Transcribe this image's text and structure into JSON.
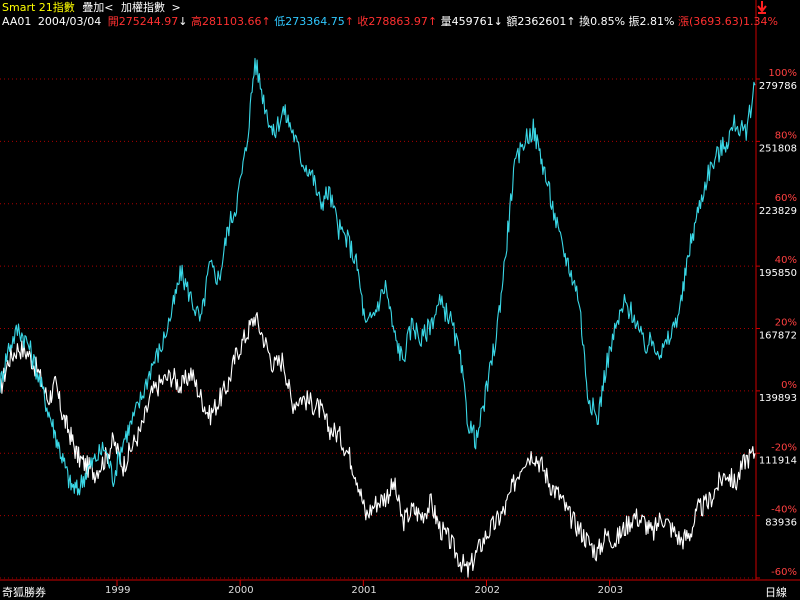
{
  "header": {
    "title": "Smart 21指數",
    "overlay_label": "疊加<",
    "overlay_name": "加權指數",
    "overlay_close": ">",
    "code": "AA01",
    "date": "2004/03/04",
    "open": "開275244.97",
    "high": "高281103.66",
    "low": "低273364.75",
    "close": "收278863.97",
    "volume": "量459761",
    "amount": "額2362601",
    "turnover": "換0.85%",
    "amplitude": "振2.81%",
    "change": "漲(3693.63)1.34%",
    "colors": {
      "title": "#ffff00",
      "label": "#ffffff",
      "up": "#ff3030",
      "down": "#ffffff",
      "low": "#30c8ff",
      "change": "#ff3030"
    }
  },
  "footer": {
    "broker": "奇狐勝券",
    "period": "日線"
  },
  "colors": {
    "background": "#000000",
    "primary_line": "#ffffff",
    "overlay_line": "#3ad7e6",
    "grid": "#aa0000",
    "axis": "#cc0000",
    "pct_label": "#ff4040",
    "value_label": "#ffffff"
  },
  "chart_data": {
    "type": "line",
    "x_axis": {
      "labels": [
        "1999",
        "2000",
        "2001",
        "2002",
        "2003"
      ],
      "positions": [
        1999.0,
        2000.0,
        2001.0,
        2002.0,
        2003.0
      ],
      "range": [
        1998.05,
        2004.18
      ]
    },
    "y_axis_pct": {
      "labels": [
        "100%",
        "80%",
        "60%",
        "40%",
        "20%",
        "0%",
        "-20%",
        "-40%",
        "-60%"
      ],
      "values": [
        100,
        80,
        60,
        40,
        20,
        0,
        -20,
        -40,
        -60
      ]
    },
    "y_axis_values": {
      "labels": [
        "279786",
        "251808",
        "223829",
        "195850",
        "167872",
        "139893",
        "111914",
        "83936"
      ],
      "values": [
        100,
        80,
        60,
        40,
        20,
        0,
        -20,
        -40
      ]
    },
    "ylim": [
      -60,
      110
    ],
    "series": [
      {
        "role": "primary",
        "x": [
          1998.05,
          1998.12,
          1998.2,
          1998.28,
          1998.36,
          1998.44,
          1998.5,
          1998.56,
          1998.62,
          1998.68,
          1998.75,
          1998.82,
          1998.9,
          1998.97,
          1999.05,
          1999.12,
          1999.2,
          1999.28,
          1999.36,
          1999.45,
          1999.52,
          1999.6,
          1999.68,
          1999.75,
          1999.83,
          1999.9,
          1999.97,
          2000.05,
          2000.12,
          2000.2,
          2000.27,
          2000.35,
          2000.42,
          2000.5,
          2000.58,
          2000.65,
          2000.72,
          2000.8,
          2000.88,
          2000.95,
          2001.02,
          2001.1,
          2001.18,
          2001.25,
          2001.32,
          2001.4,
          2001.47,
          2001.55,
          2001.62,
          2001.7,
          2001.78,
          2001.85,
          2001.92,
          2002.0,
          2002.08,
          2002.15,
          2002.22,
          2002.3,
          2002.38,
          2002.45,
          2002.52,
          2002.6,
          2002.67,
          2002.75,
          2002.82,
          2002.9,
          2002.97,
          2003.05,
          2003.12,
          2003.2,
          2003.28,
          2003.35,
          2003.42,
          2003.5,
          2003.58,
          2003.65,
          2003.72,
          2003.8,
          2003.88,
          2003.95,
          2004.02,
          2004.1,
          2004.18
        ],
        "y": [
          0,
          10,
          14,
          12,
          6,
          -3,
          2,
          -8,
          -14,
          -21,
          -24,
          -26,
          -22,
          -16,
          -24,
          -18,
          -12,
          -1,
          3,
          5,
          1,
          6,
          -2,
          -8,
          -3,
          2,
          12,
          18,
          24,
          16,
          8,
          10,
          -4,
          -2,
          -4,
          -6,
          -12,
          -14,
          -20,
          -28,
          -40,
          -36,
          -34,
          -30,
          -42,
          -38,
          -40,
          -36,
          -44,
          -48,
          -54,
          -58,
          -52,
          -46,
          -42,
          -38,
          -30,
          -22,
          -20,
          -24,
          -30,
          -34,
          -40,
          -44,
          -48,
          -52,
          -46,
          -48,
          -44,
          -40,
          -42,
          -46,
          -40,
          -44,
          -48,
          -46,
          -38,
          -36,
          -30,
          -26,
          -30,
          -22,
          -20
        ]
      },
      {
        "role": "overlay",
        "x": [
          1998.05,
          1998.12,
          1998.2,
          1998.28,
          1998.36,
          1998.44,
          1998.5,
          1998.56,
          1998.62,
          1998.68,
          1998.75,
          1998.82,
          1998.9,
          1998.97,
          1999.05,
          1999.12,
          1999.2,
          1999.28,
          1999.36,
          1999.45,
          1999.52,
          1999.6,
          1999.68,
          1999.75,
          1999.83,
          1999.9,
          1999.97,
          2000.05,
          2000.12,
          2000.2,
          2000.27,
          2000.35,
          2000.42,
          2000.5,
          2000.58,
          2000.65,
          2000.72,
          2000.8,
          2000.88,
          2000.95,
          2001.02,
          2001.1,
          2001.18,
          2001.25,
          2001.32,
          2001.4,
          2001.47,
          2001.55,
          2001.62,
          2001.7,
          2001.78,
          2001.85,
          2001.92,
          2002.0,
          2002.08,
          2002.15,
          2002.22,
          2002.3,
          2002.38,
          2002.45,
          2002.52,
          2002.6,
          2002.67,
          2002.75,
          2002.82,
          2002.9,
          2002.97,
          2003.05,
          2003.12,
          2003.2,
          2003.28,
          2003.35,
          2003.42,
          2003.5,
          2003.58,
          2003.65,
          2003.72,
          2003.8,
          2003.88,
          2003.95,
          2004.02,
          2004.1,
          2004.18
        ],
        "y": [
          2,
          14,
          20,
          15,
          5,
          -6,
          -14,
          -22,
          -30,
          -32,
          -26,
          -22,
          -18,
          -28,
          -16,
          -10,
          -2,
          8,
          14,
          26,
          38,
          30,
          22,
          40,
          36,
          52,
          60,
          78,
          106,
          92,
          82,
          90,
          84,
          74,
          70,
          60,
          64,
          52,
          48,
          40,
          20,
          26,
          34,
          18,
          10,
          22,
          16,
          22,
          28,
          24,
          12,
          -10,
          -16,
          0,
          18,
          42,
          70,
          80,
          84,
          74,
          62,
          48,
          40,
          30,
          0,
          -10,
          8,
          20,
          28,
          24,
          14,
          16,
          12,
          18,
          28,
          46,
          58,
          70,
          76,
          80,
          86,
          82,
          98
        ]
      }
    ]
  }
}
